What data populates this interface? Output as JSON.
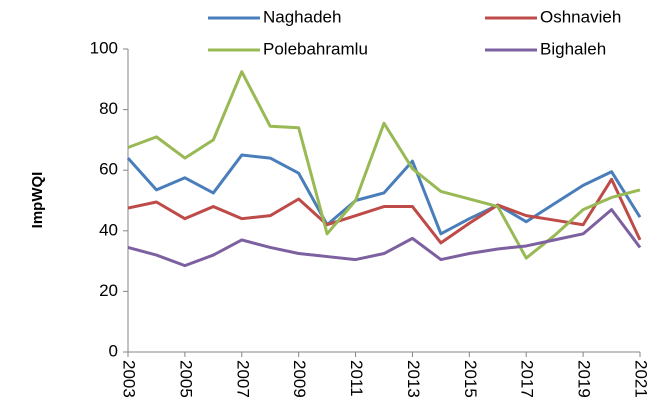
{
  "chart_data": {
    "type": "line",
    "y_label": "ImpWQI",
    "x": [
      2003,
      2004,
      2005,
      2006,
      2007,
      2008,
      2009,
      2010,
      2011,
      2012,
      2013,
      2014,
      2015,
      2016,
      2017,
      2018,
      2019,
      2020,
      2021
    ],
    "xlim": [
      2003,
      2021
    ],
    "xticks": [
      2003,
      2005,
      2007,
      2009,
      2011,
      2013,
      2015,
      2017,
      2019,
      2021
    ],
    "ylim": [
      0,
      100
    ],
    "yticks": [
      0,
      20,
      40,
      60,
      80,
      100
    ],
    "grid": false,
    "legend": "top",
    "series": [
      {
        "name": "Naghadeh",
        "color": "#4a7ebb",
        "values": [
          64,
          53.5,
          57.5,
          52.5,
          65,
          64,
          59,
          42,
          50,
          52.5,
          63,
          39,
          44,
          48.5,
          43,
          49,
          55,
          59.5,
          44.5
        ]
      },
      {
        "name": "Oshnavieh",
        "color": "#be4b48",
        "values": [
          47.5,
          49.5,
          44,
          48,
          44,
          45,
          50.5,
          42,
          45,
          48,
          48,
          36,
          42.5,
          48.5,
          45,
          43.5,
          42,
          57,
          37
        ]
      },
      {
        "name": "Polebahramlu",
        "color": "#98b954",
        "values": [
          67.5,
          71,
          64,
          70,
          92.5,
          74.5,
          74,
          39,
          50,
          75.5,
          60.5,
          53,
          50.5,
          48,
          31,
          38.5,
          47,
          51,
          53.5
        ]
      },
      {
        "name": "Bighaleh",
        "color": "#7d60a0",
        "values": [
          34.5,
          32,
          28.5,
          32,
          37,
          34.5,
          32.5,
          31.5,
          30.5,
          32.5,
          37.5,
          30.5,
          32.5,
          34,
          35,
          37,
          39,
          47,
          34.5
        ]
      }
    ]
  }
}
